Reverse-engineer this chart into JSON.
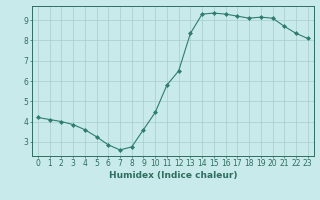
{
  "x": [
    0,
    1,
    2,
    3,
    4,
    5,
    6,
    7,
    8,
    9,
    10,
    11,
    12,
    13,
    14,
    15,
    16,
    17,
    18,
    19,
    20,
    21,
    22,
    23
  ],
  "y": [
    4.2,
    4.1,
    4.0,
    3.85,
    3.6,
    3.25,
    2.85,
    2.6,
    2.75,
    3.6,
    4.45,
    5.8,
    6.5,
    8.35,
    9.3,
    9.35,
    9.3,
    9.2,
    9.1,
    9.15,
    9.1,
    8.7,
    8.35,
    8.1
  ],
  "line_color": "#2e7d6e",
  "marker": "D",
  "marker_size": 2.0,
  "bg_color": "#c8eaea",
  "grid_color": "#a8cccc",
  "xlabel": "Humidex (Indice chaleur)",
  "ylim": [
    2.3,
    9.7
  ],
  "xlim": [
    -0.5,
    23.5
  ],
  "yticks": [
    3,
    4,
    5,
    6,
    7,
    8,
    9
  ],
  "xticks": [
    0,
    1,
    2,
    3,
    4,
    5,
    6,
    7,
    8,
    9,
    10,
    11,
    12,
    13,
    14,
    15,
    16,
    17,
    18,
    19,
    20,
    21,
    22,
    23
  ],
  "tick_color": "#2e6e60",
  "label_fontsize": 6.5,
  "tick_fontsize": 5.5,
  "linewidth": 0.8
}
